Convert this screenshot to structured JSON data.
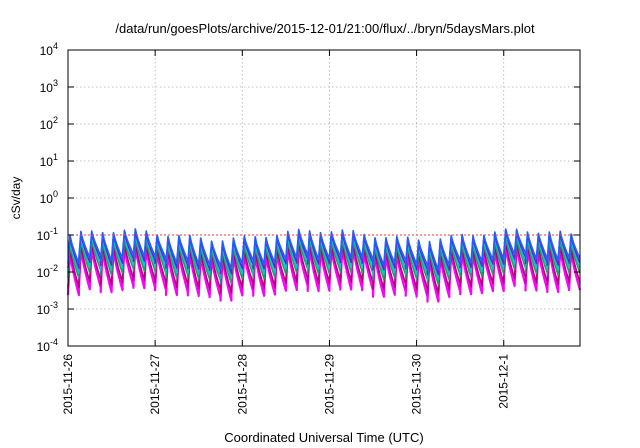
{
  "chart_data": {
    "type": "line",
    "title": "/data/run/goesPlots/archive/2015-12-01/21:00/flux/../bryn/5daysMars.plot",
    "xlabel": "Coordinated Universal Time (UTC)",
    "ylabel": "cSv/day",
    "x_range": [
      "2015-11-26",
      "2015-12-01T21:00"
    ],
    "x_ticks": [
      "2015-11-26",
      "2015-11-27",
      "2015-11-28",
      "2015-11-29",
      "2015-11-30",
      "2015-12-1"
    ],
    "y_scale": "log",
    "ylim": [
      0.0001,
      10000
    ],
    "y_ticks": [
      {
        "base": "10",
        "exp": "4"
      },
      {
        "base": "10",
        "exp": "3"
      },
      {
        "base": "10",
        "exp": "2"
      },
      {
        "base": "10",
        "exp": "1"
      },
      {
        "base": "10",
        "exp": "0"
      },
      {
        "base": "10",
        "exp": "-1"
      },
      {
        "base": "10",
        "exp": "-2"
      },
      {
        "base": "10",
        "exp": "-3"
      },
      {
        "base": "10",
        "exp": "-4"
      }
    ],
    "grid": true,
    "reference_line": {
      "value": 0.1,
      "color": "#ff3030"
    },
    "pattern": {
      "cycles_per_day": 8,
      "days": 5.875
    },
    "series": [
      {
        "color": "#ff00ff",
        "peak": 0.035,
        "trough": 0.0028
      },
      {
        "color": "#b0007a",
        "peak": 0.045,
        "trough": 0.0045
      },
      {
        "color": "#20a060",
        "peak": 0.06,
        "trough": 0.008
      },
      {
        "color": "#00c8d0",
        "peak": 0.075,
        "trough": 0.011
      },
      {
        "color": "#6a1fd0",
        "peak": 0.09,
        "trough": 0.015
      },
      {
        "color": "#2060ff",
        "peak": 0.1,
        "trough": 0.02
      }
    ]
  }
}
